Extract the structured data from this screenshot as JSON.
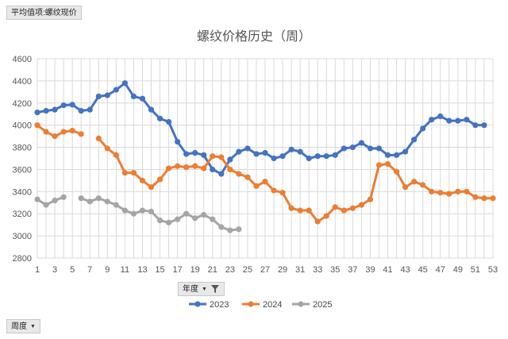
{
  "pivot": {
    "value_field": "平均值项:螺纹现价",
    "column_field": "年度",
    "row_field": "周度"
  },
  "chart_data": {
    "type": "line",
    "title": "螺纹价格历史（周）",
    "xlabel": "",
    "ylabel": "",
    "xlim": [
      1,
      53
    ],
    "ylim": [
      2800,
      4600
    ],
    "y_ticks": [
      2800,
      3000,
      3200,
      3400,
      3600,
      3800,
      4000,
      4200,
      4400,
      4600
    ],
    "x_ticks": [
      1,
      3,
      5,
      7,
      9,
      11,
      13,
      15,
      17,
      19,
      21,
      23,
      25,
      27,
      29,
      31,
      33,
      35,
      37,
      39,
      41,
      43,
      45,
      47,
      49,
      51,
      53
    ],
    "x_tick_labels": [
      "1",
      "3",
      "5",
      "7",
      "9",
      "11",
      "13",
      "15",
      "17",
      "19",
      "21",
      "23",
      "25",
      "27",
      "29",
      "31",
      "33",
      "35",
      "37",
      "39",
      "41",
      "43",
      "45",
      "47",
      "49",
      "51",
      "53"
    ],
    "y_tick_labels": [
      "2800",
      "3000",
      "3200",
      "3400",
      "3600",
      "3800",
      "4000",
      "4200",
      "4400",
      "4600"
    ],
    "grid": true,
    "legend_position": "bottom",
    "series": [
      {
        "name": "2023",
        "color": "#4472C4",
        "points": [
          [
            1,
            4115
          ],
          [
            2,
            4130
          ],
          [
            3,
            4140
          ],
          [
            4,
            4180
          ],
          [
            5,
            4185
          ],
          [
            6,
            4130
          ],
          [
            7,
            4140
          ],
          [
            8,
            4260
          ],
          [
            9,
            4270
          ],
          [
            10,
            4320
          ],
          [
            11,
            4380
          ],
          [
            12,
            4260
          ],
          [
            13,
            4240
          ],
          [
            14,
            4140
          ],
          [
            15,
            4060
          ],
          [
            16,
            4030
          ],
          [
            17,
            3850
          ],
          [
            18,
            3740
          ],
          [
            19,
            3750
          ],
          [
            20,
            3730
          ],
          [
            21,
            3600
          ],
          [
            22,
            3560
          ],
          [
            23,
            3690
          ],
          [
            24,
            3760
          ],
          [
            25,
            3790
          ],
          [
            26,
            3740
          ],
          [
            27,
            3750
          ],
          [
            28,
            3700
          ],
          [
            29,
            3720
          ],
          [
            30,
            3780
          ],
          [
            31,
            3760
          ],
          [
            32,
            3700
          ],
          [
            33,
            3720
          ],
          [
            34,
            3720
          ],
          [
            35,
            3730
          ],
          [
            36,
            3790
          ],
          [
            37,
            3800
          ],
          [
            38,
            3840
          ],
          [
            39,
            3790
          ],
          [
            40,
            3790
          ],
          [
            41,
            3730
          ],
          [
            42,
            3730
          ],
          [
            43,
            3760
          ],
          [
            44,
            3870
          ],
          [
            45,
            3970
          ],
          [
            46,
            4050
          ],
          [
            47,
            4080
          ],
          [
            48,
            4040
          ],
          [
            49,
            4040
          ],
          [
            50,
            4050
          ],
          [
            51,
            4000
          ],
          [
            52,
            4000
          ]
        ]
      },
      {
        "name": "2024",
        "color": "#ED7D31",
        "points": [
          [
            1,
            4000
          ],
          [
            2,
            3940
          ],
          [
            3,
            3900
          ],
          [
            4,
            3940
          ],
          [
            5,
            3950
          ],
          [
            6,
            3920
          ],
          null,
          [
            8,
            3880
          ],
          [
            9,
            3790
          ],
          [
            10,
            3730
          ],
          [
            11,
            3570
          ],
          [
            12,
            3570
          ],
          [
            13,
            3500
          ],
          [
            14,
            3440
          ],
          [
            15,
            3510
          ],
          [
            16,
            3610
          ],
          [
            17,
            3630
          ],
          [
            18,
            3620
          ],
          [
            19,
            3630
          ],
          [
            20,
            3610
          ],
          [
            21,
            3720
          ],
          [
            22,
            3710
          ],
          [
            23,
            3600
          ],
          [
            24,
            3560
          ],
          [
            25,
            3530
          ],
          [
            26,
            3450
          ],
          [
            27,
            3490
          ],
          [
            28,
            3410
          ],
          [
            29,
            3390
          ],
          [
            30,
            3250
          ],
          [
            31,
            3230
          ],
          [
            32,
            3230
          ],
          [
            33,
            3130
          ],
          [
            34,
            3180
          ],
          [
            35,
            3260
          ],
          [
            36,
            3230
          ],
          [
            37,
            3250
          ],
          [
            38,
            3280
          ],
          [
            39,
            3330
          ],
          [
            40,
            3640
          ],
          [
            41,
            3650
          ],
          [
            42,
            3580
          ],
          [
            43,
            3440
          ],
          [
            44,
            3490
          ],
          [
            45,
            3460
          ],
          [
            46,
            3400
          ],
          [
            47,
            3390
          ],
          [
            48,
            3380
          ],
          [
            49,
            3400
          ],
          [
            50,
            3400
          ],
          [
            51,
            3350
          ],
          [
            52,
            3340
          ],
          [
            53,
            3340
          ]
        ]
      },
      {
        "name": "2025",
        "color": "#A5A5A5",
        "points": [
          [
            1,
            3330
          ],
          [
            2,
            3280
          ],
          [
            3,
            3320
          ],
          [
            4,
            3350
          ],
          null,
          [
            6,
            3340
          ],
          [
            7,
            3310
          ],
          [
            8,
            3340
          ],
          [
            9,
            3310
          ],
          [
            10,
            3280
          ],
          [
            11,
            3230
          ],
          [
            12,
            3200
          ],
          [
            13,
            3230
          ],
          [
            14,
            3220
          ],
          [
            15,
            3140
          ],
          [
            16,
            3120
          ],
          [
            17,
            3150
          ],
          [
            18,
            3200
          ],
          [
            19,
            3160
          ],
          [
            20,
            3190
          ],
          [
            21,
            3150
          ],
          [
            22,
            3080
          ],
          [
            23,
            3050
          ],
          [
            24,
            3060
          ]
        ]
      }
    ]
  }
}
